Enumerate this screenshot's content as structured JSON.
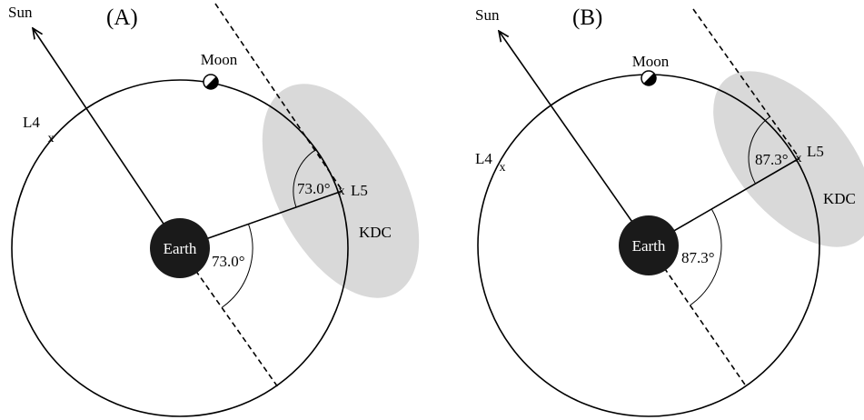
{
  "panels": [
    {
      "label": "(A)",
      "sun": "Sun",
      "moon": "Moon",
      "l4": "L4",
      "l5": "L5",
      "earth": "Earth",
      "kdc": "KDC",
      "angle_center": "73.0°",
      "angle_l5": "73.0°"
    },
    {
      "label": "(B)",
      "sun": "Sun",
      "moon": "Moon",
      "l4": "L4",
      "l5": "L5",
      "earth": "Earth",
      "kdc": "KDC",
      "angle_center": "87.3°",
      "angle_l5": "87.3°"
    }
  ],
  "colors": {
    "kdc_fill": "#d9d9d9",
    "earth_fill": "#1a1a1a",
    "line": "#000000"
  }
}
